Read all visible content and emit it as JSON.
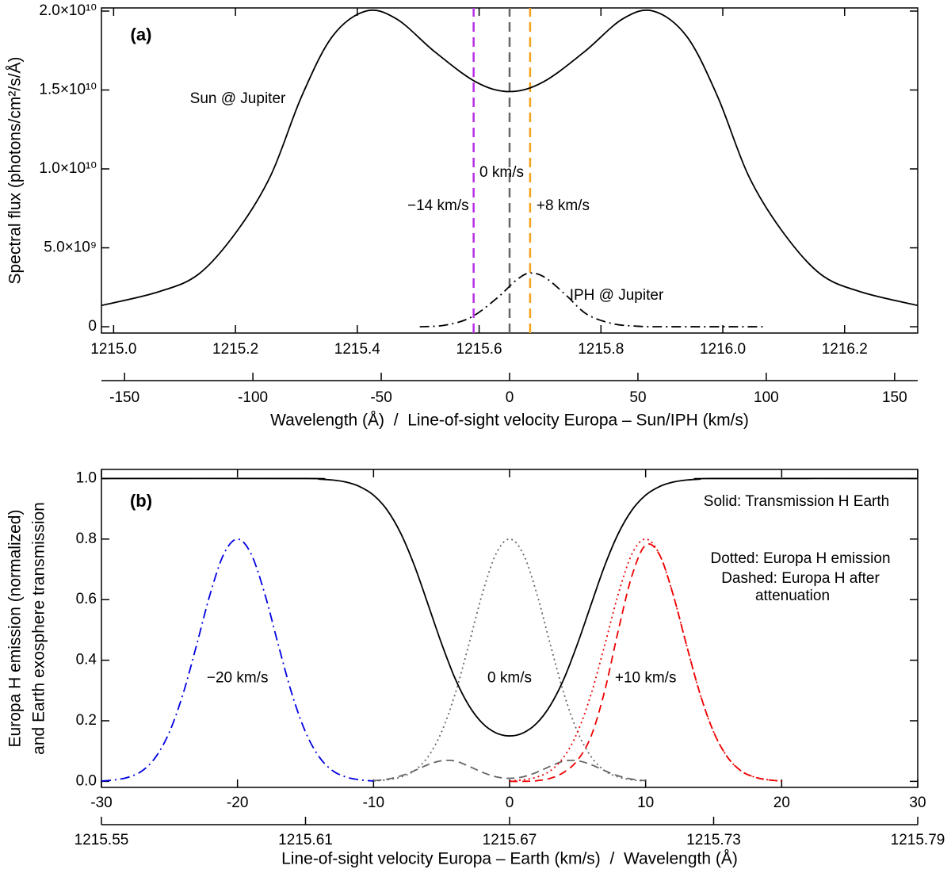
{
  "chart_data": [
    {
      "type": "line",
      "panel_label": "(a)",
      "xlabel": "Wavelength (Å)  /  Line-of-sight velocity Europa – Sun/IPH (km/s)",
      "ylabel": "Spectral flux (photons/cm²/s/Å)",
      "xlim": [
        1214.98,
        1216.32
      ],
      "xticks": [
        {
          "value": 1215.0,
          "label": "1215.0"
        },
        1215.2,
        1215.4,
        1215.6,
        1215.8,
        {
          "value": 1216.0,
          "label": "1216.0"
        },
        1216.2
      ],
      "x2lim": [
        -159,
        159
      ],
      "x2ticks": [
        -150,
        -100,
        -50,
        0,
        50,
        100,
        150
      ],
      "ylim": [
        -400000000,
        20200000000
      ],
      "yticks": [
        0,
        {
          "value": 5000000000,
          "label": "5.0×10⁹"
        },
        {
          "value": 10000000000,
          "label": "1.0×10¹⁰"
        },
        {
          "value": 15000000000,
          "label": "1.5×10¹⁰"
        },
        {
          "value": 20000000000,
          "label": "2.0×10¹⁰"
        }
      ],
      "series": [
        {
          "name": "Sun @ Jupiter",
          "color": "#000000",
          "style": "solid",
          "xaxis": "x2",
          "x": [
            -159,
            -137,
            -121,
            -106,
            -93,
            -81,
            -69,
            -56,
            -44,
            -29,
            -13,
            0,
            13,
            29,
            44,
            56,
            69,
            81,
            93,
            106,
            121,
            137,
            159
          ],
          "values": [
            1350000000,
            2200000000,
            3350000000,
            6100000000,
            9600000000,
            14600000000,
            18400000000,
            20000000000,
            19500000000,
            17400000000,
            15500000000,
            14900000000,
            15500000000,
            17400000000,
            19500000000,
            20000000000,
            18400000000,
            14600000000,
            9600000000,
            6100000000,
            3350000000,
            2200000000,
            1350000000
          ]
        },
        {
          "name": "IPH @ Jupiter",
          "color": "#000000",
          "style": "dashdot",
          "xaxis": "x2",
          "x": [
            -35,
            -25,
            -15,
            -5,
            3,
            8,
            14,
            22,
            30,
            40,
            50,
            60,
            100
          ],
          "values": [
            0,
            100000000,
            600000000,
            1800000000,
            3000000000,
            3400000000,
            3100000000,
            2000000000,
            800000000,
            200000000,
            30000000,
            0,
            0
          ]
        }
      ],
      "vlines": [
        {
          "value": -14,
          "color": "#b62fe3",
          "label": "−14 km/s"
        },
        {
          "value": 0,
          "color": "#666666",
          "label": "0 km/s"
        },
        {
          "value": 8,
          "color": "#f5a11a",
          "label": "+8 km/s"
        }
      ]
    },
    {
      "type": "line",
      "panel_label": "(b)",
      "xlabel": "Line-of-sight velocity Europa – Earth (km/s)  /  Wavelength (Å)",
      "ylabel": [
        "Europa H emission (normalized)",
        "and Earth exosphere transmission"
      ],
      "xlim": [
        -30,
        30
      ],
      "xticks": [
        -30,
        -20,
        -10,
        0,
        10,
        20,
        30
      ],
      "x2lim": [
        1215.55,
        1215.79
      ],
      "x2ticks": [
        1215.55,
        1215.61,
        1215.67,
        1215.73,
        1215.79
      ],
      "ylim": [
        -0.02,
        1.03
      ],
      "yticks": [
        {
          "value": 0,
          "label": "0.0"
        },
        0.2,
        0.4,
        0.6,
        0.8,
        {
          "value": 1,
          "label": "1.0"
        }
      ],
      "notes": [
        "Solid: Transmission H Earth",
        "Dotted: Europa H emission",
        "Dashed: Europa H after",
        "attenuation"
      ],
      "series": [
        {
          "color": "#000000",
          "style": "solid",
          "x": [
            -30,
            -15,
            -14,
            -13,
            -12,
            -11,
            -10,
            -9,
            -8,
            -7,
            -6,
            -5,
            -4,
            -3,
            -2,
            -1,
            0,
            1,
            2,
            3,
            4,
            5,
            6,
            7,
            8,
            9,
            10,
            11,
            12,
            13,
            14,
            15,
            30
          ],
          "values": [
            1,
            1,
            0.998,
            0.995,
            0.988,
            0.973,
            0.945,
            0.896,
            0.819,
            0.713,
            0.585,
            0.455,
            0.339,
            0.251,
            0.192,
            0.16,
            0.15,
            0.16,
            0.192,
            0.251,
            0.339,
            0.455,
            0.585,
            0.713,
            0.819,
            0.896,
            0.945,
            0.973,
            0.988,
            0.995,
            0.998,
            1,
            1
          ]
        },
        {
          "color": "#0000e0",
          "style": "dashdot",
          "label": "−20 km/s",
          "x": [
            -30,
            -29,
            -28,
            -27,
            -26,
            -25,
            -24,
            -23,
            -22,
            -21,
            -20,
            -19,
            -18,
            -17,
            -16,
            -15,
            -14,
            -13,
            -12,
            -11,
            -10
          ],
          "values": [
            0.001,
            0.005,
            0.014,
            0.035,
            0.081,
            0.163,
            0.289,
            0.451,
            0.62,
            0.751,
            0.8,
            0.751,
            0.62,
            0.451,
            0.289,
            0.163,
            0.081,
            0.035,
            0.014,
            0.005,
            0.001
          ]
        },
        {
          "color": "#666666",
          "style": "dotted",
          "label": "0 km/s",
          "x": [
            -10,
            -9,
            -8,
            -7,
            -6,
            -5,
            -4,
            -3,
            -2,
            -1,
            0,
            1,
            2,
            3,
            4,
            5,
            6,
            7,
            8,
            9,
            10
          ],
          "values": [
            0.001,
            0.005,
            0.014,
            0.035,
            0.081,
            0.163,
            0.289,
            0.451,
            0.62,
            0.751,
            0.8,
            0.751,
            0.62,
            0.451,
            0.289,
            0.163,
            0.081,
            0.035,
            0.014,
            0.005,
            0.001
          ]
        },
        {
          "color": "#666666",
          "style": "dashed",
          "x": [
            -10,
            -9,
            -8,
            -7,
            -6,
            -5,
            -4,
            -3,
            -2,
            -1,
            0,
            1,
            2,
            3,
            4,
            5,
            6,
            7,
            8,
            9,
            10
          ],
          "values": [
            0.002,
            0.007,
            0.018,
            0.035,
            0.055,
            0.068,
            0.067,
            0.05,
            0.03,
            0.015,
            0.01,
            0.015,
            0.03,
            0.05,
            0.067,
            0.068,
            0.055,
            0.035,
            0.018,
            0.007,
            0.002
          ]
        },
        {
          "color": "#ee0000",
          "style": "dotted",
          "label": "+10 km/s",
          "x": [
            0,
            1,
            2,
            3,
            4,
            5,
            6,
            7,
            8,
            9,
            10,
            11,
            12,
            13,
            14,
            15,
            16,
            17,
            18,
            19,
            20
          ],
          "values": [
            0.001,
            0.005,
            0.014,
            0.035,
            0.081,
            0.163,
            0.289,
            0.451,
            0.62,
            0.751,
            0.8,
            0.751,
            0.62,
            0.451,
            0.289,
            0.163,
            0.081,
            0.035,
            0.014,
            0.005,
            0.001
          ]
        },
        {
          "color": "#ee0000",
          "style": "dashed",
          "x": [
            0,
            1,
            2,
            3,
            4,
            5,
            6,
            7,
            8,
            9,
            10,
            11,
            12,
            13,
            14,
            15,
            16,
            17,
            18,
            19,
            20
          ],
          "values": [
            0,
            0,
            0.002,
            0.01,
            0.03,
            0.07,
            0.15,
            0.3,
            0.5,
            0.68,
            0.78,
            0.75,
            0.62,
            0.451,
            0.289,
            0.163,
            0.081,
            0.035,
            0.014,
            0.005,
            0.001
          ]
        }
      ]
    }
  ]
}
